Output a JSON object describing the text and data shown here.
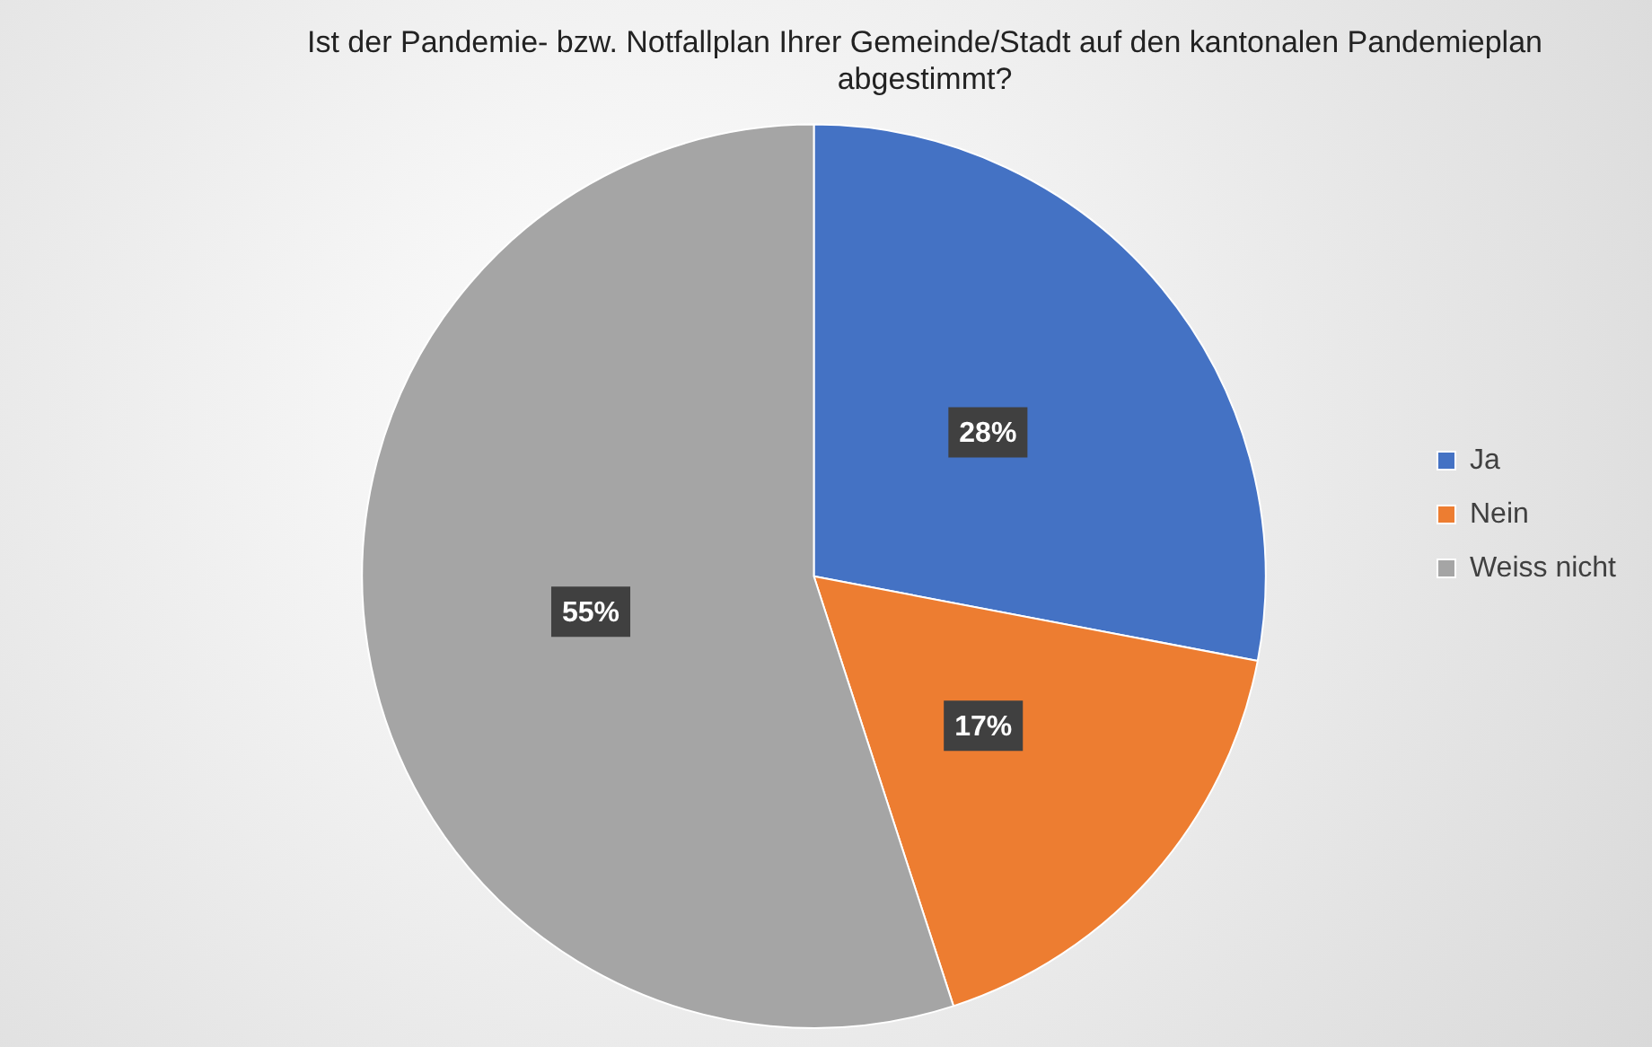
{
  "chart_data": {
    "type": "pie",
    "title": "Ist der Pandemie- bzw. Notfallplan Ihrer Gemeinde/Stadt auf den kantonalen Pandemieplan abgestimmt?",
    "categories": [
      "Ja",
      "Nein",
      "Weiss nicht"
    ],
    "values": [
      28,
      17,
      55
    ],
    "colors": [
      "#4472c4",
      "#ed7d31",
      "#a5a5a5"
    ],
    "value_labels": [
      "28%",
      "17%",
      "55%"
    ],
    "legend": "right"
  }
}
